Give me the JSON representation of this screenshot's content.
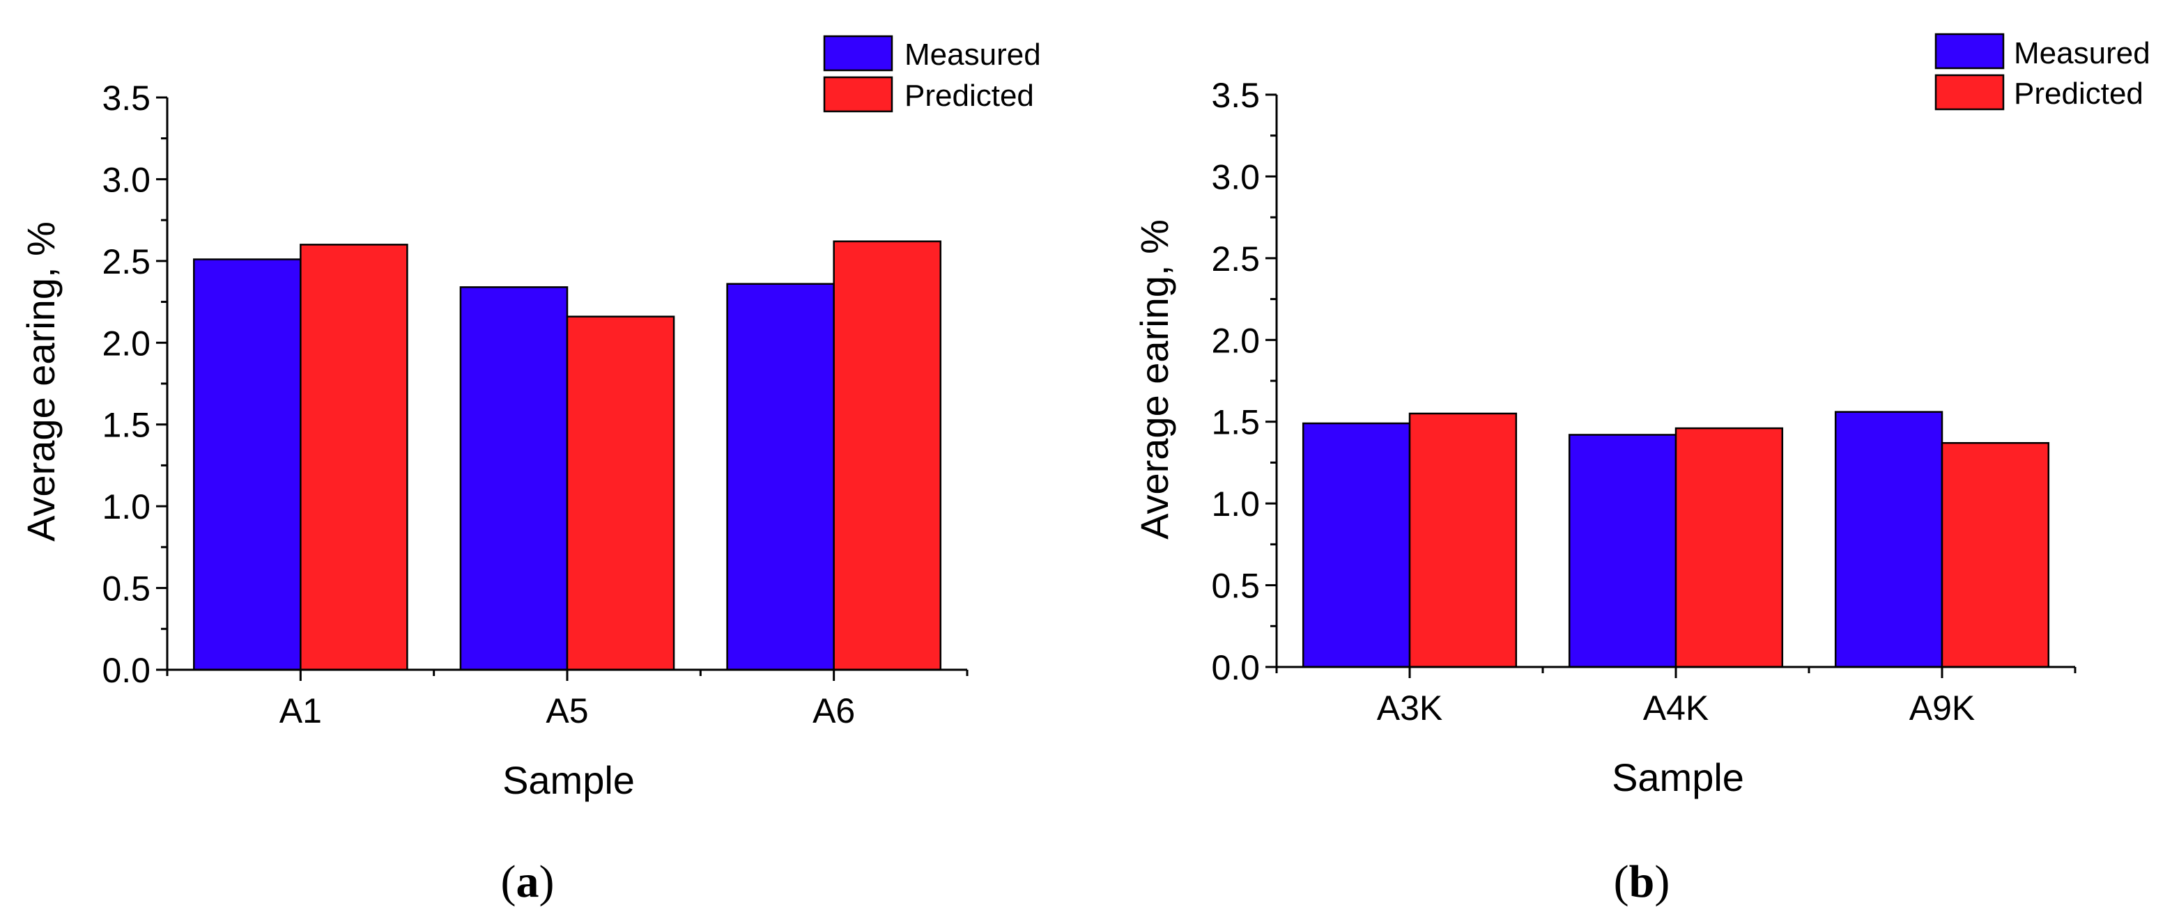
{
  "figure": {
    "panels": [
      {
        "id": "a",
        "label": "(a)",
        "letter": "a"
      },
      {
        "id": "b",
        "label": "(b)",
        "letter": "b"
      }
    ]
  },
  "colors": {
    "measured": "#3300ff",
    "predicted": "#ff2025",
    "axis": "#000000"
  },
  "chart_data": [
    {
      "panel": "a",
      "type": "bar",
      "title": "",
      "xlabel": "Sample",
      "ylabel": "Average earing, %",
      "categories": [
        "A1",
        "A5",
        "A6"
      ],
      "ylim": [
        0,
        3.5
      ],
      "yticks": [
        0.0,
        0.5,
        1.0,
        1.5,
        2.0,
        2.5,
        3.0,
        3.5
      ],
      "ytick_labels": [
        "0.0",
        "0.5",
        "1.0",
        "1.5",
        "2.0",
        "2.5",
        "3.0",
        "3.5"
      ],
      "legend_position": "top-right",
      "grid": false,
      "series": [
        {
          "name": "Measured",
          "color": "#3300ff",
          "values": [
            2.51,
            2.34,
            2.36
          ]
        },
        {
          "name": "Predicted",
          "color": "#ff2025",
          "values": [
            2.6,
            2.16,
            2.62
          ]
        }
      ]
    },
    {
      "panel": "b",
      "type": "bar",
      "title": "",
      "xlabel": "Sample",
      "ylabel": "Average earing, %",
      "categories": [
        "A3K",
        "A4K",
        "A9K"
      ],
      "ylim": [
        0,
        3.5
      ],
      "yticks": [
        0.0,
        0.5,
        1.0,
        1.5,
        2.0,
        2.5,
        3.0,
        3.5
      ],
      "ytick_labels": [
        "0.0",
        "0.5",
        "1.0",
        "1.5",
        "2.0",
        "2.5",
        "3.0",
        "3.5"
      ],
      "legend_position": "top-right",
      "grid": false,
      "series": [
        {
          "name": "Measured",
          "color": "#3300ff",
          "values": [
            1.49,
            1.42,
            1.56
          ]
        },
        {
          "name": "Predicted",
          "color": "#ff2025",
          "values": [
            1.55,
            1.46,
            1.37
          ]
        }
      ]
    }
  ]
}
